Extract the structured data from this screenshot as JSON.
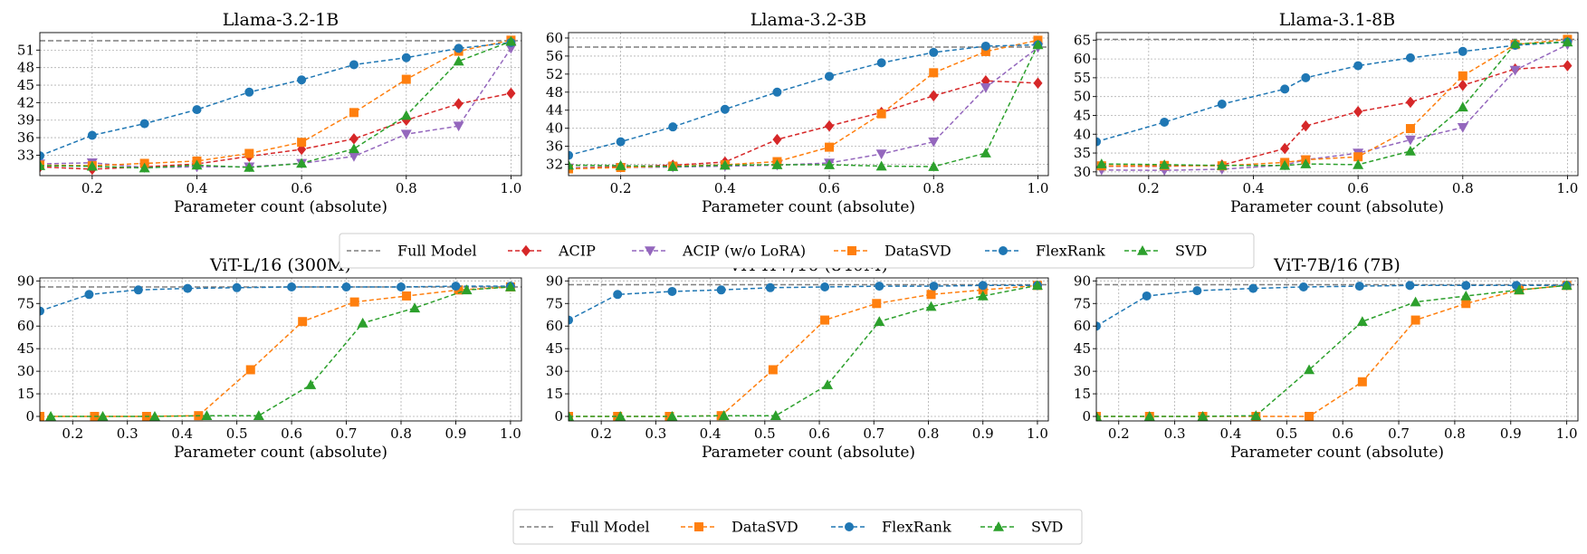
{
  "xlabel": "Parameter count (absolute)",
  "colors": {
    "full_model": "#7f7f7f",
    "ACIP": "#d62728",
    "ACIP (w/o LoRA)": "#9467bd",
    "DataSVD": "#ff7f0e",
    "FlexRank": "#1f77b4",
    "SVD": "#2ca02c"
  },
  "legends": {
    "top": [
      "Full Model",
      "ACIP",
      "ACIP (w/o LoRA)",
      "DataSVD",
      "FlexRank",
      "SVD"
    ],
    "bottom": [
      "Full Model",
      "DataSVD",
      "FlexRank",
      "SVD"
    ]
  },
  "chart_data": [
    {
      "type": "line",
      "title": "Llama-3.2-1B",
      "xlabel": "Parameter count (absolute)",
      "xlim": [
        0.1,
        1.02
      ],
      "ylim": [
        29.5,
        54
      ],
      "xticks": [
        0.2,
        0.4,
        0.6,
        0.8,
        1.0
      ],
      "xtick_labels": [
        "0.2",
        "0.4",
        "0.6",
        "0.8",
        "1.0"
      ],
      "yticks": [
        33,
        36,
        39,
        42,
        45,
        48,
        51
      ],
      "full_model": 52.6,
      "series": [
        {
          "name": "ACIP",
          "marker": "diamond",
          "x": [
            0.1,
            0.2,
            0.3,
            0.4,
            0.5,
            0.6,
            0.7,
            0.8,
            0.9,
            1.0
          ],
          "y": [
            31.0,
            30.6,
            31.0,
            31.5,
            32.8,
            34.0,
            35.8,
            39.0,
            41.8,
            43.6
          ]
        },
        {
          "name": "ACIP (w/o LoRA)",
          "marker": "triangle-down",
          "x": [
            0.1,
            0.2,
            0.3,
            0.4,
            0.5,
            0.6,
            0.7,
            0.8,
            0.9,
            1.0
          ],
          "y": [
            31.5,
            31.7,
            30.9,
            31.0,
            31.0,
            31.6,
            32.8,
            36.6,
            38.0,
            51.3
          ]
        },
        {
          "name": "DataSVD",
          "marker": "square",
          "x": [
            0.1,
            0.2,
            0.3,
            0.4,
            0.5,
            0.6,
            0.7,
            0.8,
            0.9,
            1.0
          ],
          "y": [
            31.3,
            31.2,
            31.6,
            32.0,
            33.3,
            35.2,
            40.3,
            46.0,
            50.8,
            52.7
          ]
        },
        {
          "name": "FlexRank",
          "marker": "circle",
          "x": [
            0.1,
            0.2,
            0.3,
            0.4,
            0.5,
            0.6,
            0.7,
            0.8,
            0.9,
            1.0
          ],
          "y": [
            32.9,
            36.4,
            38.4,
            40.8,
            43.8,
            45.9,
            48.5,
            49.7,
            51.3,
            52.3
          ]
        },
        {
          "name": "SVD",
          "marker": "triangle-up",
          "x": [
            0.1,
            0.2,
            0.3,
            0.4,
            0.5,
            0.6,
            0.7,
            0.8,
            0.9,
            1.0
          ],
          "y": [
            31.2,
            31.1,
            30.8,
            31.3,
            30.9,
            31.6,
            34.1,
            39.8,
            49.1,
            52.5
          ]
        }
      ]
    },
    {
      "type": "line",
      "title": "Llama-3.2-3B",
      "xlabel": "Parameter count (absolute)",
      "xlim": [
        0.1,
        1.02
      ],
      "ylim": [
        29.5,
        61.2
      ],
      "xticks": [
        0.2,
        0.4,
        0.6,
        0.8,
        1.0
      ],
      "xtick_labels": [
        "0.2",
        "0.4",
        "0.6",
        "0.8",
        "1.0"
      ],
      "yticks": [
        32,
        36,
        40,
        44,
        48,
        52,
        56,
        60
      ],
      "full_model": 58.0,
      "series": [
        {
          "name": "ACIP",
          "marker": "diamond",
          "x": [
            0.1,
            0.2,
            0.3,
            0.4,
            0.5,
            0.6,
            0.7,
            0.8,
            0.9,
            1.0
          ],
          "y": [
            31.2,
            31.5,
            31.8,
            32.5,
            37.5,
            40.5,
            43.5,
            47.2,
            50.5,
            50.0
          ]
        },
        {
          "name": "ACIP (w/o LoRA)",
          "marker": "triangle-down",
          "x": [
            0.1,
            0.2,
            0.3,
            0.4,
            0.5,
            0.6,
            0.7,
            0.8,
            0.9,
            1.0
          ],
          "y": [
            31.2,
            31.3,
            31.4,
            31.6,
            31.8,
            32.3,
            34.3,
            37.0,
            49.0,
            57.9
          ]
        },
        {
          "name": "DataSVD",
          "marker": "square",
          "x": [
            0.1,
            0.2,
            0.3,
            0.4,
            0.5,
            0.6,
            0.7,
            0.8,
            0.9,
            1.0
          ],
          "y": [
            31.0,
            31.3,
            31.6,
            31.9,
            32.6,
            35.8,
            43.2,
            52.3,
            57.0,
            59.5
          ]
        },
        {
          "name": "FlexRank",
          "marker": "circle",
          "x": [
            0.1,
            0.2,
            0.3,
            0.4,
            0.5,
            0.6,
            0.7,
            0.8,
            0.9,
            1.0
          ],
          "y": [
            34.0,
            37.0,
            40.3,
            44.2,
            48.0,
            51.5,
            54.5,
            56.8,
            58.2,
            58.5
          ]
        },
        {
          "name": "SVD",
          "marker": "triangle-up",
          "x": [
            0.1,
            0.2,
            0.3,
            0.4,
            0.5,
            0.6,
            0.7,
            0.8,
            0.9,
            1.0
          ],
          "y": [
            31.8,
            31.7,
            31.5,
            31.8,
            31.9,
            31.9,
            31.6,
            31.5,
            34.5,
            58.5
          ]
        }
      ]
    },
    {
      "type": "line",
      "title": "Llama-3.1-8B",
      "xlabel": "Parameter count (absolute)",
      "xlim": [
        0.1,
        1.02
      ],
      "ylim": [
        29,
        67
      ],
      "xticks": [
        0.2,
        0.4,
        0.6,
        0.8,
        1.0
      ],
      "xtick_labels": [
        "0.2",
        "0.4",
        "0.6",
        "0.8",
        "1.0"
      ],
      "yticks": [
        30,
        35,
        40,
        45,
        50,
        55,
        60,
        65
      ],
      "full_model": 65.2,
      "series": [
        {
          "name": "ACIP",
          "marker": "diamond",
          "x": [
            0.11,
            0.23,
            0.34,
            0.46,
            0.5,
            0.6,
            0.7,
            0.8,
            0.9,
            1.0
          ],
          "y": [
            31.5,
            31.5,
            31.8,
            36.2,
            42.2,
            46.0,
            48.5,
            53.0,
            57.3,
            58.2
          ]
        },
        {
          "name": "ACIP (w/o LoRA)",
          "marker": "triangle-down",
          "x": [
            0.11,
            0.23,
            0.34,
            0.46,
            0.5,
            0.6,
            0.7,
            0.8,
            0.9,
            1.0
          ],
          "y": [
            30.5,
            30.4,
            30.7,
            31.8,
            33.2,
            35.0,
            38.5,
            41.8,
            57.0,
            63.8
          ]
        },
        {
          "name": "DataSVD",
          "marker": "square",
          "x": [
            0.11,
            0.23,
            0.34,
            0.46,
            0.5,
            0.6,
            0.7,
            0.8,
            0.9,
            1.0
          ],
          "y": [
            31.6,
            31.7,
            31.6,
            32.5,
            33.2,
            34.0,
            41.5,
            55.5,
            63.8,
            65.2
          ]
        },
        {
          "name": "FlexRank",
          "marker": "circle",
          "x": [
            0.1,
            0.23,
            0.34,
            0.46,
            0.5,
            0.6,
            0.7,
            0.8,
            0.9,
            1.0
          ],
          "y": [
            38.0,
            43.2,
            48.0,
            52.0,
            55.0,
            58.2,
            60.3,
            62.0,
            63.6,
            64.5
          ]
        },
        {
          "name": "SVD",
          "marker": "triangle-up",
          "x": [
            0.11,
            0.23,
            0.34,
            0.46,
            0.5,
            0.6,
            0.7,
            0.8,
            0.9,
            1.0
          ],
          "y": [
            32.1,
            31.9,
            31.7,
            31.7,
            32.1,
            31.9,
            35.5,
            47.2,
            64.0,
            64.5
          ]
        }
      ]
    },
    {
      "type": "line",
      "title": "ViT-L/16 (300M)",
      "xlabel": "Parameter count (absolute)",
      "xlim": [
        0.14,
        1.02
      ],
      "ylim": [
        -3,
        92
      ],
      "xticks": [
        0.2,
        0.3,
        0.4,
        0.5,
        0.6,
        0.7,
        0.8,
        0.9,
        1.0
      ],
      "xtick_labels": [
        "0.2",
        "0.3",
        "0.4",
        "0.5",
        "0.6",
        "0.7",
        "0.8",
        "0.9",
        "1.0"
      ],
      "yticks": [
        0,
        15,
        30,
        45,
        60,
        75,
        90
      ],
      "full_model": 86,
      "series": [
        {
          "name": "DataSVD",
          "marker": "square",
          "x": [
            0.14,
            0.24,
            0.335,
            0.43,
            0.525,
            0.62,
            0.715,
            0.81,
            0.905,
            1.0
          ],
          "y": [
            0,
            0,
            0,
            0.5,
            31,
            63,
            76,
            80,
            84,
            86
          ]
        },
        {
          "name": "FlexRank",
          "marker": "circle",
          "x": [
            0.14,
            0.23,
            0.32,
            0.41,
            0.5,
            0.6,
            0.7,
            0.8,
            0.9,
            1.0
          ],
          "y": [
            70,
            81,
            84,
            85,
            85.5,
            86,
            86,
            86,
            86.5,
            86.5
          ]
        },
        {
          "name": "SVD",
          "marker": "triangle-up",
          "x": [
            0.16,
            0.255,
            0.35,
            0.445,
            0.54,
            0.635,
            0.73,
            0.825,
            0.92,
            1.0
          ],
          "y": [
            0,
            0,
            0,
            0.5,
            0.5,
            21,
            62,
            72,
            84,
            86
          ]
        }
      ]
    },
    {
      "type": "line",
      "title": "ViT-H+/16 (840M)",
      "xlabel": "Parameter count (absolute)",
      "xlim": [
        0.14,
        1.02
      ],
      "ylim": [
        -3,
        92
      ],
      "xticks": [
        0.2,
        0.3,
        0.4,
        0.5,
        0.6,
        0.7,
        0.8,
        0.9,
        1.0
      ],
      "xtick_labels": [
        "0.2",
        "0.3",
        "0.4",
        "0.5",
        "0.6",
        "0.7",
        "0.8",
        "0.9",
        "1.0"
      ],
      "yticks": [
        0,
        15,
        30,
        45,
        60,
        75,
        90
      ],
      "full_model": 87.5,
      "series": [
        {
          "name": "DataSVD",
          "marker": "square",
          "x": [
            0.14,
            0.23,
            0.325,
            0.42,
            0.515,
            0.61,
            0.705,
            0.805,
            0.9,
            1.0
          ],
          "y": [
            0,
            0,
            0,
            0.5,
            31,
            64,
            75,
            81,
            84,
            87
          ]
        },
        {
          "name": "FlexRank",
          "marker": "circle",
          "x": [
            0.14,
            0.23,
            0.33,
            0.42,
            0.51,
            0.61,
            0.71,
            0.81,
            0.9,
            1.0
          ],
          "y": [
            64,
            81,
            83,
            84,
            85.5,
            86,
            86.5,
            86.5,
            87,
            87
          ]
        },
        {
          "name": "SVD",
          "marker": "triangle-up",
          "x": [
            0.14,
            0.235,
            0.33,
            0.425,
            0.52,
            0.615,
            0.71,
            0.805,
            0.9,
            1.0
          ],
          "y": [
            0,
            0,
            0,
            0.5,
            0.5,
            21,
            63,
            73,
            80,
            87
          ]
        }
      ]
    },
    {
      "type": "line",
      "title": "ViT-7B/16 (7B)",
      "xlabel": "Parameter count (absolute)",
      "xlim": [
        0.16,
        1.02
      ],
      "ylim": [
        -3,
        92
      ],
      "xticks": [
        0.2,
        0.3,
        0.4,
        0.5,
        0.6,
        0.7,
        0.8,
        0.9,
        1.0
      ],
      "xtick_labels": [
        "0.2",
        "0.3",
        "0.4",
        "0.5",
        "0.6",
        "0.7",
        "0.8",
        "0.9",
        "1.0"
      ],
      "yticks": [
        0,
        15,
        30,
        45,
        60,
        75,
        90
      ],
      "full_model": 87.5,
      "series": [
        {
          "name": "DataSVD",
          "marker": "square",
          "x": [
            0.16,
            0.255,
            0.35,
            0.445,
            0.54,
            0.635,
            0.73,
            0.82,
            0.915,
            1.0
          ],
          "y": [
            0,
            0,
            0,
            0,
            0,
            23,
            64,
            75,
            84,
            87
          ]
        },
        {
          "name": "FlexRank",
          "marker": "circle",
          "x": [
            0.16,
            0.25,
            0.34,
            0.44,
            0.53,
            0.63,
            0.72,
            0.82,
            0.91,
            1.0
          ],
          "y": [
            60,
            80,
            83.5,
            85,
            86,
            86.5,
            87,
            87,
            87,
            87
          ]
        },
        {
          "name": "SVD",
          "marker": "triangle-up",
          "x": [
            0.16,
            0.255,
            0.35,
            0.445,
            0.54,
            0.635,
            0.73,
            0.82,
            0.915,
            1.0
          ],
          "y": [
            0,
            0,
            0,
            0.5,
            31,
            63,
            76,
            80,
            84,
            87
          ]
        }
      ]
    }
  ]
}
